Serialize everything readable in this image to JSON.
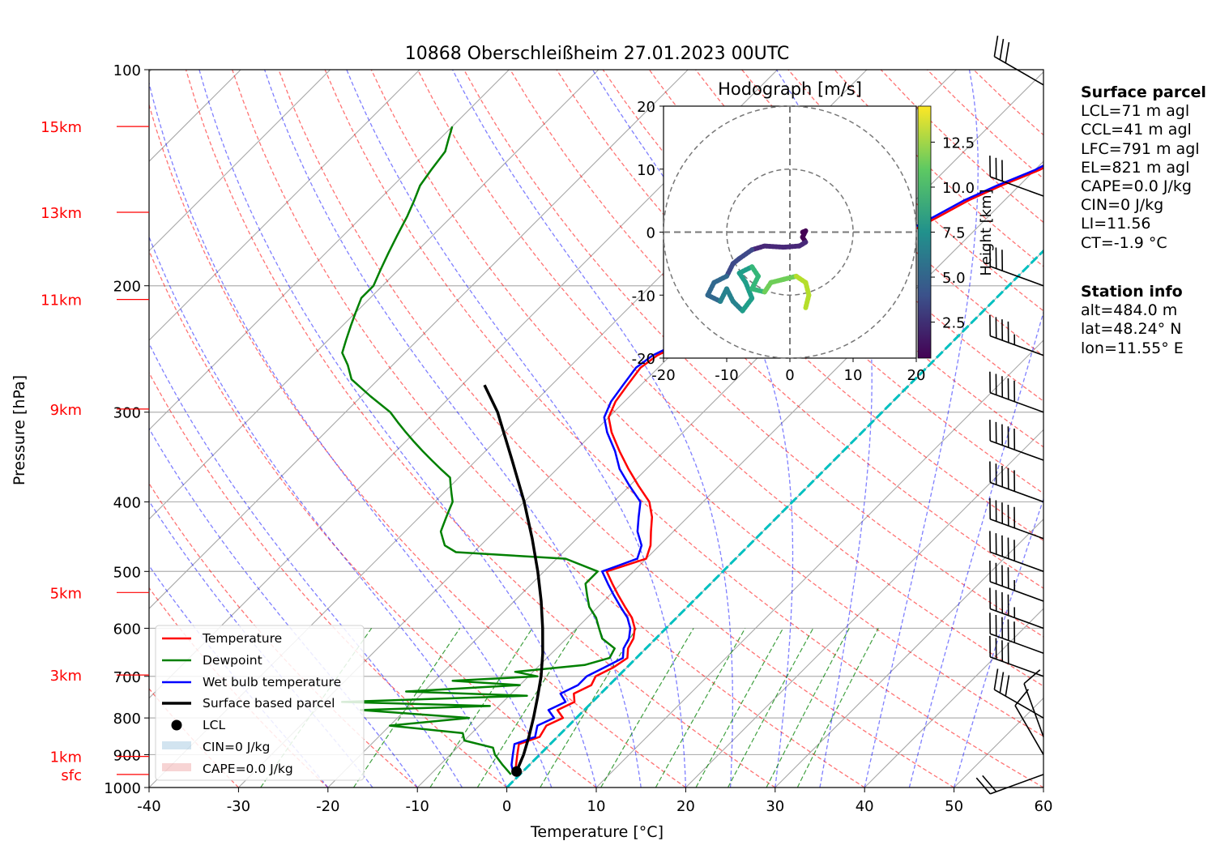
{
  "chart_data": {
    "type": "skew-t",
    "title": "10868 Oberschleißheim 27.01.2023 00UTC",
    "xlabel": "Temperature [°C]",
    "ylabel": "Pressure [hPa]",
    "xlim": [
      -40,
      60
    ],
    "ylim": [
      1000,
      100
    ],
    "x_ticks": [
      -40,
      -30,
      -20,
      -10,
      0,
      10,
      20,
      30,
      40,
      50,
      60
    ],
    "y_ticks": [
      100,
      200,
      300,
      400,
      500,
      600,
      700,
      800,
      900,
      1000
    ],
    "height_labels": [
      {
        "label": "15km",
        "p": 120
      },
      {
        "label": "13km",
        "p": 158
      },
      {
        "label": "11km",
        "p": 209
      },
      {
        "label": "9km",
        "p": 297
      },
      {
        "label": "5km",
        "p": 535
      },
      {
        "label": "3km",
        "p": 697
      },
      {
        "label": "1km",
        "p": 905
      },
      {
        "label": "sfc",
        "p": 959
      }
    ],
    "series": [
      {
        "name": "Temperature",
        "color": "#ff0000",
        "points": [
          [
            -0.5,
            959
          ],
          [
            -1.5,
            930
          ],
          [
            -2.5,
            900
          ],
          [
            -3.5,
            870
          ],
          [
            -2.0,
            850
          ],
          [
            -2.5,
            820
          ],
          [
            -1.5,
            800
          ],
          [
            -3,
            780
          ],
          [
            -2,
            760
          ],
          [
            -3,
            740
          ],
          [
            -2,
            720
          ],
          [
            -2.5,
            700
          ],
          [
            -1.5,
            680
          ],
          [
            -1,
            660
          ],
          [
            -2,
            640
          ],
          [
            -2.5,
            620
          ],
          [
            -3.5,
            600
          ],
          [
            -5,
            580
          ],
          [
            -7,
            560
          ],
          [
            -9,
            540
          ],
          [
            -11,
            520
          ],
          [
            -13,
            500
          ],
          [
            -10,
            480
          ],
          [
            -11,
            460
          ],
          [
            -12.5,
            440
          ],
          [
            -14,
            420
          ],
          [
            -16,
            400
          ],
          [
            -19,
            380
          ],
          [
            -22,
            360
          ],
          [
            -25,
            340
          ],
          [
            -28,
            320
          ],
          [
            -30,
            305
          ],
          [
            -31,
            290
          ],
          [
            -31.5,
            275
          ],
          [
            -32,
            260
          ],
          [
            -31.5,
            250
          ],
          [
            -30,
            240
          ],
          [
            -29,
            230
          ],
          [
            -27.5,
            220
          ],
          [
            -26.5,
            210
          ],
          [
            -25,
            200
          ],
          [
            -23,
            190
          ],
          [
            -21,
            182
          ],
          [
            -19,
            175
          ],
          [
            -17,
            168
          ],
          [
            -15.5,
            160
          ],
          [
            -14,
            152
          ],
          [
            -12,
            145
          ],
          [
            -9.5,
            138
          ],
          [
            -8,
            132
          ],
          [
            -6,
            127
          ],
          [
            -4,
            123
          ],
          [
            -2,
            120
          ]
        ]
      },
      {
        "name": "Dewpoint",
        "color": "#008000",
        "points": [
          [
            -1,
            959
          ],
          [
            -3,
            930
          ],
          [
            -5,
            900
          ],
          [
            -6,
            880
          ],
          [
            -10,
            860
          ],
          [
            -11,
            840
          ],
          [
            -20,
            820
          ],
          [
            -12,
            800
          ],
          [
            -25,
            780
          ],
          [
            -11,
            770
          ],
          [
            -28,
            760
          ],
          [
            -8,
            745
          ],
          [
            -22,
            735
          ],
          [
            -10,
            720
          ],
          [
            -18,
            710
          ],
          [
            -9,
            700
          ],
          [
            -12,
            690
          ],
          [
            -5,
            675
          ],
          [
            -3,
            660
          ],
          [
            -3.5,
            640
          ],
          [
            -6,
            620
          ],
          [
            -7.5,
            600
          ],
          [
            -9,
            580
          ],
          [
            -11,
            560
          ],
          [
            -12.5,
            540
          ],
          [
            -14,
            520
          ],
          [
            -14,
            500
          ],
          [
            -19,
            480
          ],
          [
            -32,
            470
          ],
          [
            -34,
            460
          ],
          [
            -35,
            450
          ],
          [
            -36,
            440
          ],
          [
            -36.5,
            430
          ],
          [
            -37,
            420
          ],
          [
            -37.5,
            410
          ],
          [
            -38,
            400
          ],
          [
            -39,
            390
          ],
          [
            -40,
            380
          ],
          [
            -41,
            370
          ],
          [
            -43,
            360
          ],
          [
            -45,
            350
          ],
          [
            -47,
            340
          ],
          [
            -49,
            330
          ],
          [
            -51,
            320
          ],
          [
            -53,
            310
          ],
          [
            -55,
            300
          ],
          [
            -59,
            285
          ],
          [
            -63,
            270
          ],
          [
            -65,
            258
          ],
          [
            -67,
            248
          ],
          [
            -68,
            238
          ],
          [
            -69,
            228
          ],
          [
            -70,
            218
          ],
          [
            -71,
            208
          ],
          [
            -71,
            200
          ],
          [
            -72,
            190
          ],
          [
            -73,
            180
          ],
          [
            -74,
            170
          ],
          [
            -75,
            160
          ],
          [
            -76,
            152
          ],
          [
            -77,
            145
          ],
          [
            -77.5,
            138
          ],
          [
            -78,
            130
          ],
          [
            -79,
            125
          ],
          [
            -80,
            120
          ]
        ]
      },
      {
        "name": "Wet bulb temperature",
        "color": "#0000ff",
        "points": [
          [
            -0.7,
            959
          ],
          [
            -2,
            930
          ],
          [
            -3,
            900
          ],
          [
            -4,
            870
          ],
          [
            -2.5,
            850
          ],
          [
            -3.5,
            820
          ],
          [
            -2.5,
            800
          ],
          [
            -4,
            780
          ],
          [
            -3,
            760
          ],
          [
            -4.5,
            740
          ],
          [
            -3.5,
            720
          ],
          [
            -3.5,
            700
          ],
          [
            -2.5,
            680
          ],
          [
            -1.5,
            660
          ],
          [
            -2.5,
            640
          ],
          [
            -3,
            620
          ],
          [
            -4,
            600
          ],
          [
            -5.5,
            580
          ],
          [
            -7.5,
            560
          ],
          [
            -9.5,
            540
          ],
          [
            -11.5,
            520
          ],
          [
            -13.5,
            500
          ],
          [
            -11,
            480
          ],
          [
            -12,
            460
          ],
          [
            -14,
            440
          ],
          [
            -15.5,
            420
          ],
          [
            -17,
            400
          ],
          [
            -20,
            380
          ],
          [
            -23,
            360
          ],
          [
            -25.5,
            340
          ],
          [
            -28.5,
            320
          ],
          [
            -30.5,
            305
          ],
          [
            -31.5,
            290
          ],
          [
            -32,
            275
          ],
          [
            -32.5,
            260
          ],
          [
            -32,
            250
          ],
          [
            -30.5,
            240
          ],
          [
            -29.5,
            230
          ],
          [
            -28,
            220
          ],
          [
            -27,
            210
          ],
          [
            -25.5,
            200
          ],
          [
            -23.5,
            190
          ],
          [
            -21.5,
            182
          ],
          [
            -19.5,
            175
          ],
          [
            -17.5,
            168
          ],
          [
            -16,
            160
          ],
          [
            -14.5,
            152
          ],
          [
            -12.5,
            145
          ],
          [
            -10,
            138
          ],
          [
            -8.5,
            132
          ],
          [
            -6.5,
            127
          ],
          [
            -4.5,
            123
          ],
          [
            -2.5,
            120
          ]
        ]
      },
      {
        "name": "Surface based parcel",
        "color": "#000000",
        "points": [
          [
            -0.5,
            959
          ],
          [
            -0.7,
            950
          ],
          [
            -1.8,
            900
          ],
          [
            -3.2,
            850
          ],
          [
            -4.8,
            800
          ],
          [
            -6.6,
            750
          ],
          [
            -8.6,
            700
          ],
          [
            -11,
            650
          ],
          [
            -13.8,
            600
          ],
          [
            -17,
            550
          ],
          [
            -20.7,
            500
          ],
          [
            -25,
            450
          ],
          [
            -30,
            400
          ],
          [
            -36,
            350
          ],
          [
            -43,
            300
          ],
          [
            -47.5,
            275
          ]
        ]
      }
    ],
    "lcl": {
      "name": "LCL",
      "t": -0.7,
      "p": 950
    },
    "legend_extra": [
      "CIN=0 J/kg",
      "CAPE=0.0 J/kg"
    ],
    "legend_position": "lower-left",
    "hodograph": {
      "title": "Hodograph [m/s]",
      "xlim": [
        -20,
        20
      ],
      "ylim": [
        -20,
        20
      ],
      "ticks": [
        -20,
        -10,
        0,
        10,
        20
      ],
      "rings": [
        10,
        20
      ],
      "colorbar_label": "Height [km]",
      "colorbar_ticks": [
        "2.5",
        "5.0",
        "7.5",
        "10.0",
        "12.5"
      ],
      "colorbar_range": [
        0.5,
        14.5
      ],
      "points": [
        [
          2,
          0,
          0.5
        ],
        [
          2.5,
          0.2,
          0.8
        ],
        [
          2,
          -0.8,
          1.2
        ],
        [
          2.5,
          -1.6,
          1.6
        ],
        [
          1.5,
          -2.2,
          2
        ],
        [
          -1,
          -2.4,
          2.4
        ],
        [
          -4,
          -2.2,
          2.8
        ],
        [
          -6,
          -2.8,
          3.2
        ],
        [
          -8,
          -4.2,
          3.6
        ],
        [
          -9,
          -5,
          4
        ],
        [
          -10,
          -7,
          4.5
        ],
        [
          -12,
          -8,
          5
        ],
        [
          -13,
          -10,
          5.5
        ],
        [
          -11,
          -11,
          6
        ],
        [
          -10,
          -9,
          6.5
        ],
        [
          -9,
          -11,
          7
        ],
        [
          -7.5,
          -12.5,
          7.5
        ],
        [
          -6,
          -10.5,
          8
        ],
        [
          -7,
          -8,
          8.5
        ],
        [
          -8,
          -6.5,
          9
        ],
        [
          -6,
          -5.5,
          9.5
        ],
        [
          -5,
          -7,
          10
        ],
        [
          -6,
          -9,
          10.5
        ],
        [
          -4,
          -9.5,
          11
        ],
        [
          -3,
          -8,
          11.5
        ],
        [
          -1,
          -7.5,
          12
        ],
        [
          1,
          -7,
          12.5
        ],
        [
          2.5,
          -8,
          13
        ],
        [
          3,
          -10,
          13.5
        ],
        [
          2.5,
          -12,
          14.5
        ]
      ]
    },
    "wind_barbs": [
      {
        "p": 959,
        "dir": 250,
        "spd": 20
      },
      {
        "p": 900,
        "dir": 330,
        "spd": 10
      },
      {
        "p": 850,
        "dir": 340,
        "spd": 10
      },
      {
        "p": 800,
        "dir": 300,
        "spd": 30
      },
      {
        "p": 700,
        "dir": 290,
        "spd": 40
      },
      {
        "p": 650,
        "dir": 290,
        "spd": 50
      },
      {
        "p": 600,
        "dir": 290,
        "spd": 45
      },
      {
        "p": 550,
        "dir": 290,
        "spd": 45
      },
      {
        "p": 500,
        "dir": 290,
        "spd": 50
      },
      {
        "p": 450,
        "dir": 290,
        "spd": 50
      },
      {
        "p": 400,
        "dir": 290,
        "spd": 50
      },
      {
        "p": 350,
        "dir": 290,
        "spd": 50
      },
      {
        "p": 300,
        "dir": 290,
        "spd": 50
      },
      {
        "p": 250,
        "dir": 290,
        "spd": 45
      },
      {
        "p": 200,
        "dir": 290,
        "spd": 30
      },
      {
        "p": 150,
        "dir": 290,
        "spd": 30
      },
      {
        "p": 105,
        "dir": 300,
        "spd": 30
      }
    ]
  },
  "legend": {
    "temperature": "Temperature",
    "dewpoint": "Dewpoint",
    "wetbulb": "Wet bulb temperature",
    "parcel": "Surface based parcel",
    "lcl": "LCL",
    "cin": "CIN=0 J/kg",
    "cape": "CAPE=0.0 J/kg"
  },
  "surface_parcel": {
    "heading": "Surface parcel",
    "lines": [
      "LCL=71 m agl",
      "CCL=41 m agl",
      "LFC=791 m agl",
      "EL=821 m agl",
      "CAPE=0.0 J/kg",
      "CIN=0 J/kg",
      "LI=11.56",
      "CT=-1.9 °C"
    ]
  },
  "station_info": {
    "heading": "Station info",
    "lines": [
      "alt=484.0 m",
      "lat=48.24° N",
      "lon=11.55° E"
    ]
  }
}
